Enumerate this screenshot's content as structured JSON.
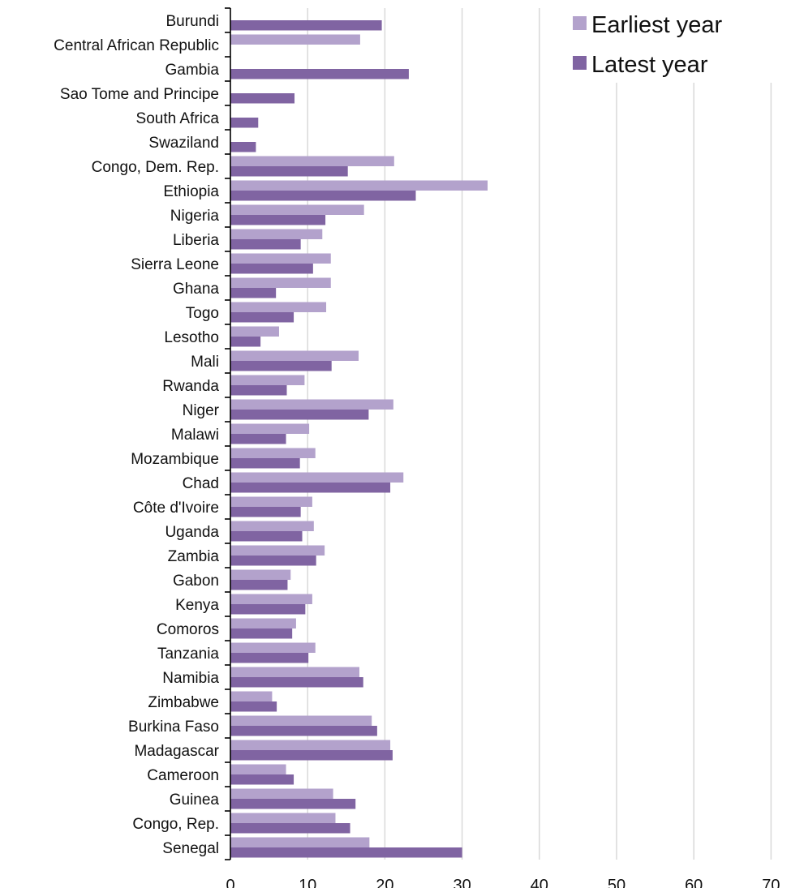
{
  "chart_data": {
    "type": "bar",
    "orientation": "horizontal",
    "title": "",
    "xlabel": "",
    "ylabel": "",
    "xlim": [
      0,
      70
    ],
    "x_ticks": [
      "0",
      "10",
      "20",
      "30",
      "40",
      "50",
      "60",
      "70"
    ],
    "grid": "vertical",
    "legend_position": "top-right",
    "categories": [
      "Burundi",
      "Central African Republic",
      "Gambia",
      "Sao Tome and Principe",
      "South Africa",
      "Swaziland",
      "Congo, Dem. Rep.",
      "Ethiopia",
      "Nigeria",
      "Liberia",
      "Sierra Leone",
      "Ghana",
      "Togo",
      "Lesotho",
      "Mali",
      "Rwanda",
      "Niger",
      "Malawi",
      "Mozambique",
      "Chad",
      "Côte d'Ivoire",
      "Uganda",
      "Zambia",
      "Gabon",
      "Kenya",
      "Comoros",
      "Tanzania",
      "Namibia",
      "Zimbabwe",
      "Burkina Faso",
      "Madagascar",
      "Cameroon",
      "Guinea",
      "Congo, Rep.",
      "Senegal"
    ],
    "series": [
      {
        "name": "Earliest year",
        "color": "#b3a2cc",
        "values": [
          null,
          16.8,
          null,
          null,
          null,
          null,
          21.2,
          33.3,
          17.3,
          11.9,
          13.0,
          13.0,
          12.4,
          6.3,
          16.6,
          9.6,
          21.1,
          10.2,
          11.0,
          22.4,
          10.6,
          10.8,
          12.2,
          7.8,
          10.6,
          8.5,
          11.0,
          16.7,
          5.4,
          18.3,
          20.7,
          7.2,
          13.3,
          13.6,
          18.0
        ]
      },
      {
        "name": "Latest year",
        "color": "#8064a2",
        "values": [
          19.6,
          null,
          23.1,
          8.3,
          3.6,
          3.3,
          15.2,
          24.0,
          12.3,
          9.1,
          10.7,
          5.9,
          8.2,
          3.9,
          13.1,
          7.3,
          17.9,
          7.2,
          9.0,
          20.7,
          9.1,
          9.3,
          11.1,
          7.4,
          9.7,
          8.0,
          10.1,
          17.2,
          6.0,
          19.0,
          21.0,
          8.2,
          16.2,
          15.5,
          30.0
        ]
      }
    ]
  }
}
